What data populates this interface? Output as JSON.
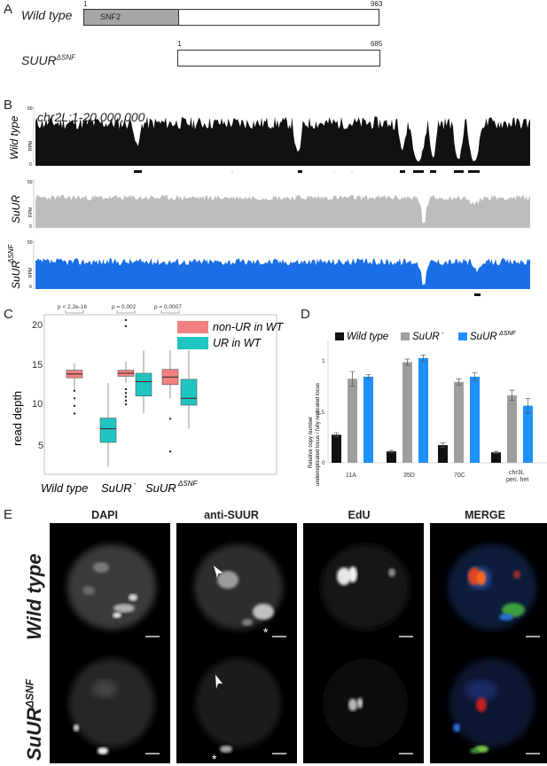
{
  "panelA": {
    "letter": "A",
    "wt_label": "Wild type",
    "wt_start": "1",
    "wt_end": "963",
    "domain_label": "SNF2",
    "mut_label_base": "SUUR",
    "mut_label_sup": "ΔSNF",
    "mut_start": "1",
    "mut_end": "685"
  },
  "panelB": {
    "letter": "B",
    "region": "chr2L:1-20,000,000",
    "tracks": [
      {
        "label": "Wild type",
        "sup": "",
        "color": "#111111",
        "ymax": "50",
        "ymin": "0",
        "unit": "RPM"
      },
      {
        "label": "SuUR",
        "sup": "-",
        "color": "#bdbdbd",
        "ymax": "50",
        "ymin": "0",
        "unit": "RPM"
      },
      {
        "label": "SuUR",
        "sup": "ΔSNF",
        "color": "#1a6fe6",
        "ymax": "50",
        "ymin": "0",
        "unit": "RPM"
      }
    ]
  },
  "panelC": {
    "letter": "C",
    "ylabel": "read depth",
    "yticks": [
      "20",
      "15",
      "10",
      "5"
    ],
    "pvalues": [
      "p < 2.2e-16",
      "p = 0.002",
      "p = 0.0007"
    ],
    "groups": [
      {
        "label": "Wild type",
        "sup": ""
      },
      {
        "label": "SuUR",
        "sup": "-"
      },
      {
        "label": "SuUR",
        "sup": "ΔSNF"
      }
    ],
    "legend": [
      {
        "label": "non-UR in WT",
        "color": "#f28080"
      },
      {
        "label": "UR in WT",
        "color": "#20c4c0"
      }
    ]
  },
  "panelD": {
    "letter": "D",
    "legend": [
      {
        "label": "Wild type",
        "sup": "",
        "color": "#111111"
      },
      {
        "label": "SuUR",
        "sup": "-",
        "color": "#9e9e9e"
      },
      {
        "label": "SuUR",
        "sup": "ΔSNF",
        "color": "#1e90ff"
      }
    ],
    "ylabel_line1": "Relative copy number",
    "ylabel_line2": "underreplicated locus / fully replicated locus",
    "yticks": [
      "1",
      "0.5",
      "0"
    ],
    "categories": [
      "11A",
      "35D",
      "70C",
      "chr3L"
    ],
    "cat4_line2": "peri. het"
  },
  "panelE": {
    "letter": "E",
    "channels": [
      "DAPI",
      "anti-SUUR",
      "EdU",
      "MERGE"
    ],
    "rows": [
      {
        "label": "Wild type",
        "sup": ""
      },
      {
        "label": "SuUR",
        "sup": "ΔSNF"
      }
    ],
    "asterisk": "*"
  },
  "chart_data": [
    {
      "type": "box",
      "title": "",
      "ylabel": "read depth",
      "ylim": [
        2,
        23
      ],
      "categories": [
        "Wild type",
        "SuUR-",
        "SuURΔSNF"
      ],
      "series": [
        {
          "name": "non-UR in WT",
          "color": "#f28080",
          "boxes": [
            {
              "min": 13.2,
              "q1": 14.7,
              "median": 15.2,
              "q3": 15.7,
              "max": 16.6,
              "outliers": [
                13.0,
                12.0,
                11.0,
                10.0
              ]
            },
            {
              "min": 14.0,
              "q1": 14.9,
              "median": 15.3,
              "q3": 15.7,
              "max": 16.8,
              "outliers": [
                21.5,
                22.3,
                13.2,
                12.7,
                12.2,
                11.7,
                11.2
              ]
            },
            {
              "min": 12.0,
              "q1": 13.8,
              "median": 14.8,
              "q3": 15.8,
              "max": 18.3,
              "outliers": [
                9.3,
                5.0
              ]
            }
          ]
        },
        {
          "name": "UR in WT",
          "color": "#20c4c0",
          "boxes": [
            {
              "min": 3.0,
              "q1": 6.2,
              "median": 8.0,
              "q3": 9.4,
              "max": 14.0,
              "outliers": []
            },
            {
              "min": 10.0,
              "q1": 12.3,
              "median": 14.2,
              "q3": 15.3,
              "max": 18.3,
              "outliers": []
            },
            {
              "min": 8.0,
              "q1": 11.1,
              "median": 12.0,
              "q3": 14.5,
              "max": 18.3,
              "outliers": []
            }
          ]
        }
      ],
      "pvalues": [
        "p < 2.2e-16",
        "p = 0.002",
        "p = 0.0007"
      ]
    },
    {
      "type": "bar",
      "title": "",
      "ylabel": "Relative copy number underreplicated locus / fully replicated locus",
      "ylim": [
        0,
        1.1
      ],
      "categories": [
        "11A",
        "35D",
        "70C",
        "chr3L peri. het"
      ],
      "series": [
        {
          "name": "Wild type",
          "color": "#111111",
          "values": [
            0.27,
            0.11,
            0.17,
            0.1
          ],
          "errors": [
            0.02,
            0.01,
            0.02,
            0.01
          ]
        },
        {
          "name": "SuUR-",
          "color": "#9e9e9e",
          "values": [
            0.81,
            0.97,
            0.78,
            0.65
          ],
          "errors": [
            0.07,
            0.03,
            0.03,
            0.05
          ]
        },
        {
          "name": "SuURΔSNF",
          "color": "#1e90ff",
          "values": [
            0.83,
            1.01,
            0.83,
            0.55
          ],
          "errors": [
            0.02,
            0.03,
            0.04,
            0.07
          ]
        }
      ]
    }
  ]
}
